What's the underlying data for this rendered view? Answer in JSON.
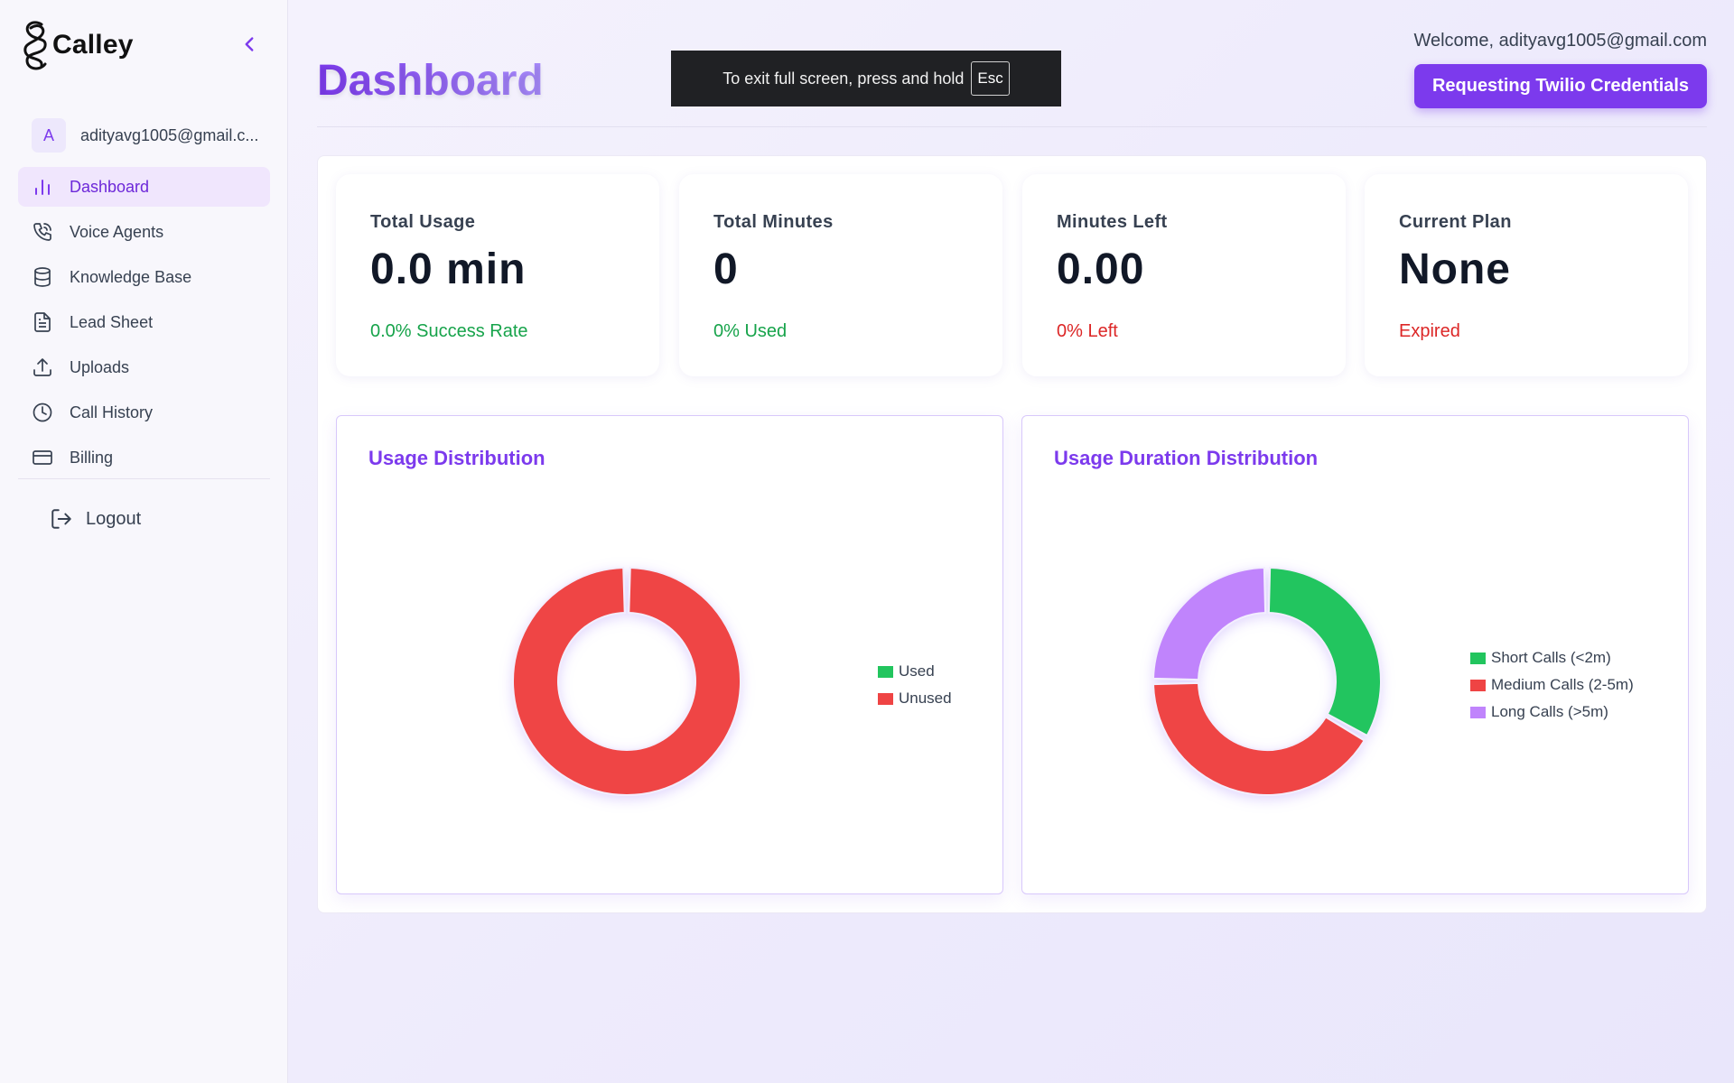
{
  "app": {
    "name": "Calley"
  },
  "sidebar": {
    "user": {
      "initial": "A",
      "email": "adityavg1005@gmail.c..."
    },
    "items": [
      {
        "label": "Dashboard",
        "icon": "bar-chart-icon",
        "active": true
      },
      {
        "label": "Voice Agents",
        "icon": "phone-icon",
        "active": false
      },
      {
        "label": "Knowledge Base",
        "icon": "database-icon",
        "active": false
      },
      {
        "label": "Lead Sheet",
        "icon": "document-icon",
        "active": false
      },
      {
        "label": "Uploads",
        "icon": "upload-icon",
        "active": false
      },
      {
        "label": "Call History",
        "icon": "clock-icon",
        "active": false
      },
      {
        "label": "Billing",
        "icon": "credit-card-icon",
        "active": false
      }
    ],
    "logout_label": "Logout"
  },
  "header": {
    "title": "Dashboard",
    "welcome": "Welcome, adityavg1005@gmail.com",
    "twilio_button": "Requesting Twilio Credentials"
  },
  "fullscreen_notice": {
    "text": "To exit full screen, press and hold",
    "key": "Esc"
  },
  "stats": [
    {
      "label": "Total Usage",
      "value": "0.0 min",
      "sub": "0.0% Success Rate",
      "sub_color": "green"
    },
    {
      "label": "Total Minutes",
      "value": "0",
      "sub": "0% Used",
      "sub_color": "green"
    },
    {
      "label": "Minutes Left",
      "value": "0.00",
      "sub": "0% Left",
      "sub_color": "red"
    },
    {
      "label": "Current Plan",
      "value": "None",
      "sub": "Expired",
      "sub_color": "red"
    }
  ],
  "colors": {
    "accent": "#7c3aed",
    "green": "#22c55e",
    "red": "#ef4444",
    "purple": "#c084fc"
  },
  "chart_data": [
    {
      "type": "pie",
      "title": "Usage Distribution",
      "categories": [
        "Used",
        "Unused"
      ],
      "values": [
        0,
        100
      ],
      "colors": [
        "#22c55e",
        "#ef4444"
      ],
      "legend": "right"
    },
    {
      "type": "pie",
      "title": "Usage Duration Distribution",
      "categories": [
        "Short Calls (<2m)",
        "Medium Calls (2-5m)",
        "Long Calls (>5m)"
      ],
      "values": [
        33.3,
        41.7,
        25.0
      ],
      "colors": [
        "#22c55e",
        "#ef4444",
        "#c084fc"
      ],
      "legend": "right"
    }
  ]
}
